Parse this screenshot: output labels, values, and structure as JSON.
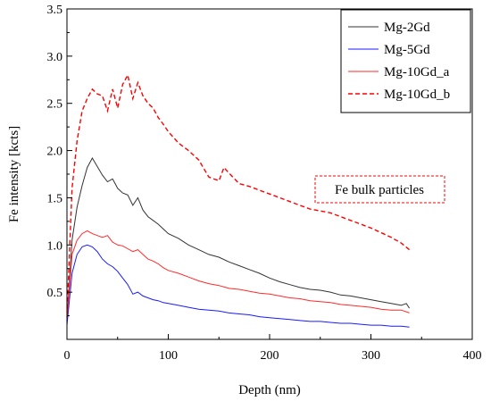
{
  "chart_data": {
    "type": "line",
    "title": "",
    "xlabel": "Depth (nm)",
    "ylabel": "Fe intensity [kcts]",
    "xlim": [
      0,
      400
    ],
    "ylim": [
      0,
      3.5
    ],
    "x_ticks": [
      0,
      100,
      200,
      300,
      400
    ],
    "y_ticks": [
      0.5,
      1.0,
      1.5,
      2.0,
      2.5,
      3.0,
      3.5
    ],
    "x_tick_labels": [
      "0",
      "100",
      "200",
      "300",
      "400"
    ],
    "y_tick_labels": [
      "0.5",
      "1.0",
      "1.5",
      "2.0",
      "2.5",
      "3.0",
      "3.5"
    ],
    "grid": false,
    "legend_position": "top-right",
    "annotation": {
      "text": "Fe bulk particles",
      "x": 295,
      "y": 1.63,
      "color": "#ff0000"
    },
    "series": [
      {
        "name": "Mg-2Gd",
        "color": "#333333",
        "dash": "solid",
        "x": [
          0,
          5,
          10,
          15,
          20,
          25,
          30,
          35,
          40,
          45,
          50,
          55,
          60,
          65,
          70,
          75,
          80,
          85,
          90,
          95,
          100,
          110,
          120,
          130,
          140,
          150,
          160,
          170,
          180,
          190,
          200,
          210,
          220,
          230,
          240,
          250,
          260,
          270,
          280,
          290,
          300,
          310,
          320,
          330,
          335,
          338
        ],
        "y": [
          0.2,
          1.05,
          1.4,
          1.63,
          1.82,
          1.92,
          1.83,
          1.74,
          1.67,
          1.7,
          1.6,
          1.55,
          1.53,
          1.42,
          1.5,
          1.37,
          1.3,
          1.26,
          1.22,
          1.17,
          1.12,
          1.07,
          1.0,
          0.95,
          0.9,
          0.87,
          0.82,
          0.78,
          0.74,
          0.7,
          0.65,
          0.61,
          0.58,
          0.55,
          0.53,
          0.52,
          0.5,
          0.47,
          0.46,
          0.44,
          0.42,
          0.4,
          0.38,
          0.36,
          0.38,
          0.33
        ]
      },
      {
        "name": "Mg-5Gd",
        "color": "#1a1aff",
        "dash": "solid",
        "x": [
          0,
          5,
          10,
          15,
          20,
          25,
          30,
          35,
          40,
          45,
          50,
          55,
          60,
          65,
          70,
          75,
          80,
          85,
          90,
          95,
          100,
          110,
          120,
          130,
          140,
          150,
          160,
          170,
          180,
          190,
          200,
          210,
          220,
          230,
          240,
          250,
          260,
          270,
          280,
          290,
          300,
          310,
          320,
          330,
          338
        ],
        "y": [
          0.15,
          0.7,
          0.9,
          0.98,
          1.0,
          0.98,
          0.93,
          0.85,
          0.8,
          0.77,
          0.72,
          0.65,
          0.58,
          0.48,
          0.5,
          0.46,
          0.44,
          0.42,
          0.41,
          0.39,
          0.38,
          0.36,
          0.34,
          0.32,
          0.31,
          0.3,
          0.28,
          0.27,
          0.26,
          0.24,
          0.23,
          0.22,
          0.21,
          0.2,
          0.19,
          0.19,
          0.18,
          0.17,
          0.17,
          0.16,
          0.15,
          0.15,
          0.14,
          0.14,
          0.13
        ]
      },
      {
        "name": "Mg-10Gd_a",
        "color": "#ff2a2a",
        "dash": "solid",
        "x": [
          0,
          5,
          10,
          15,
          20,
          25,
          30,
          35,
          40,
          45,
          50,
          55,
          60,
          65,
          70,
          75,
          80,
          85,
          90,
          95,
          100,
          110,
          120,
          130,
          140,
          150,
          160,
          170,
          180,
          190,
          200,
          210,
          220,
          230,
          240,
          250,
          260,
          270,
          280,
          290,
          300,
          310,
          320,
          330,
          338
        ],
        "y": [
          0.2,
          0.9,
          1.05,
          1.12,
          1.15,
          1.12,
          1.1,
          1.08,
          1.1,
          1.03,
          1.0,
          0.99,
          0.96,
          0.93,
          0.95,
          0.9,
          0.85,
          0.83,
          0.8,
          0.76,
          0.73,
          0.7,
          0.66,
          0.62,
          0.59,
          0.57,
          0.54,
          0.53,
          0.51,
          0.49,
          0.48,
          0.46,
          0.44,
          0.43,
          0.41,
          0.4,
          0.39,
          0.37,
          0.36,
          0.35,
          0.34,
          0.32,
          0.31,
          0.31,
          0.28
        ]
      },
      {
        "name": "Mg-10Gd_b",
        "color": "#ff0000",
        "dash": "dashed",
        "x": [
          0,
          5,
          10,
          15,
          20,
          25,
          30,
          35,
          40,
          45,
          50,
          55,
          60,
          65,
          70,
          75,
          80,
          85,
          90,
          95,
          100,
          110,
          120,
          130,
          140,
          150,
          155,
          160,
          170,
          180,
          190,
          200,
          210,
          220,
          230,
          240,
          250,
          260,
          270,
          280,
          290,
          300,
          310,
          320,
          330,
          338
        ],
        "y": [
          0.25,
          1.6,
          2.1,
          2.42,
          2.55,
          2.65,
          2.6,
          2.58,
          2.42,
          2.65,
          2.45,
          2.7,
          2.8,
          2.55,
          2.72,
          2.58,
          2.5,
          2.45,
          2.35,
          2.28,
          2.2,
          2.08,
          2.0,
          1.9,
          1.72,
          1.68,
          1.82,
          1.76,
          1.65,
          1.62,
          1.58,
          1.54,
          1.5,
          1.46,
          1.42,
          1.38,
          1.36,
          1.34,
          1.3,
          1.26,
          1.22,
          1.18,
          1.13,
          1.08,
          1.02,
          0.95
        ]
      }
    ]
  }
}
